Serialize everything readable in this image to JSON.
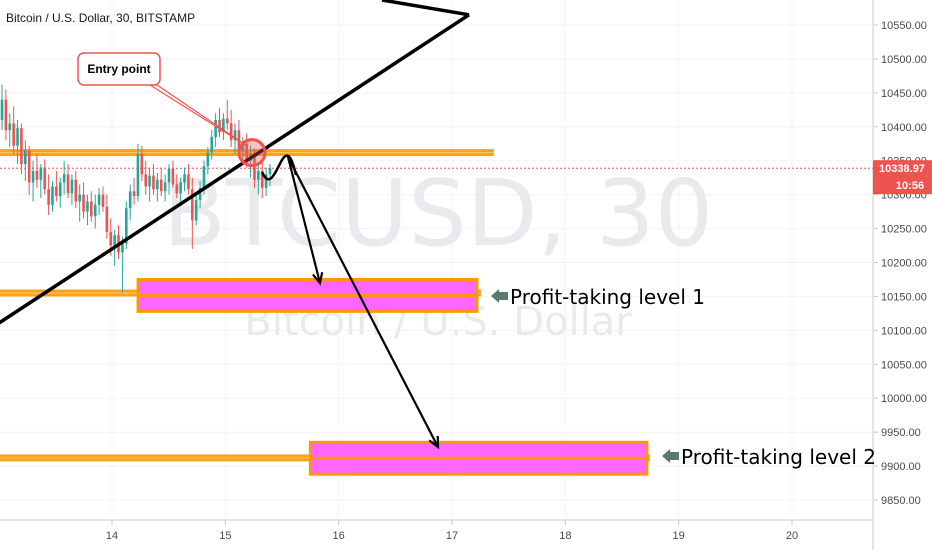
{
  "symbol_title": "Bitcoin / U.S. Dollar, 30, BITSTAMP",
  "watermark": {
    "ticker": "BTCUSD, 30",
    "name": "Bitcoin / U.S. Dollar"
  },
  "price_tag": {
    "price": "10338.97",
    "countdown": "10:56"
  },
  "annotations": {
    "entry_label": "Entry point",
    "tp1_label": "Profit-taking level 1",
    "tp2_label": "Profit-taking level 2"
  },
  "colors": {
    "candle_up": "#26a69a",
    "candle_down": "#ef5350",
    "level_orange": "#ff9800",
    "zone_fill": "#ff66ff",
    "price_tag": "#ef5350",
    "arrow_marker": "#5b7a6e"
  },
  "chart_data": {
    "type": "candlestick",
    "x_ticks": [
      "14",
      "15",
      "16",
      "17",
      "18",
      "19",
      "20"
    ],
    "y_ticks": [
      "10550.00",
      "10500.00",
      "10450.00",
      "10400.00",
      "10350.00",
      "10300.00",
      "10250.00",
      "10200.00",
      "10150.00",
      "10100.00",
      "10050.00",
      "10000.00",
      "9950.00",
      "9900.00",
      "9850.00"
    ],
    "ylim": [
      9820,
      10580
    ],
    "current_price": 10338.97,
    "levels": {
      "entry_resistance": 10362,
      "tp1": 10155,
      "tp2": 9912
    },
    "tp_zones": [
      {
        "x_start": 14.23,
        "x_end": 17.22,
        "y_low": 10128,
        "y_high": 10175
      },
      {
        "x_start": 15.75,
        "x_end": 18.72,
        "y_low": 9888,
        "y_high": 9935
      }
    ],
    "trendline": {
      "x1": 12.95,
      "y1": 10105,
      "x2": 17.15,
      "y2": 10565
    },
    "candles": [
      {
        "o": 10410,
        "h": 10462,
        "l": 10395,
        "c": 10440
      },
      {
        "o": 10440,
        "h": 10455,
        "l": 10380,
        "c": 10395
      },
      {
        "o": 10395,
        "h": 10420,
        "l": 10370,
        "c": 10405
      },
      {
        "o": 10405,
        "h": 10430,
        "l": 10360,
        "c": 10372
      },
      {
        "o": 10372,
        "h": 10410,
        "l": 10345,
        "c": 10398
      },
      {
        "o": 10398,
        "h": 10405,
        "l": 10330,
        "c": 10345
      },
      {
        "o": 10345,
        "h": 10380,
        "l": 10320,
        "c": 10365
      },
      {
        "o": 10365,
        "h": 10372,
        "l": 10300,
        "c": 10318
      },
      {
        "o": 10318,
        "h": 10350,
        "l": 10290,
        "c": 10335
      },
      {
        "o": 10335,
        "h": 10360,
        "l": 10310,
        "c": 10322
      },
      {
        "o": 10322,
        "h": 10345,
        "l": 10295,
        "c": 10340
      },
      {
        "o": 10340,
        "h": 10352,
        "l": 10300,
        "c": 10308
      },
      {
        "o": 10308,
        "h": 10330,
        "l": 10270,
        "c": 10285
      },
      {
        "o": 10285,
        "h": 10320,
        "l": 10275,
        "c": 10312
      },
      {
        "o": 10312,
        "h": 10335,
        "l": 10290,
        "c": 10298
      },
      {
        "o": 10298,
        "h": 10325,
        "l": 10280,
        "c": 10318
      },
      {
        "o": 10318,
        "h": 10350,
        "l": 10300,
        "c": 10330
      },
      {
        "o": 10330,
        "h": 10345,
        "l": 10295,
        "c": 10302
      },
      {
        "o": 10302,
        "h": 10330,
        "l": 10285,
        "c": 10322
      },
      {
        "o": 10322,
        "h": 10335,
        "l": 10280,
        "c": 10290
      },
      {
        "o": 10290,
        "h": 10315,
        "l": 10260,
        "c": 10300
      },
      {
        "o": 10300,
        "h": 10318,
        "l": 10265,
        "c": 10275
      },
      {
        "o": 10275,
        "h": 10300,
        "l": 10255,
        "c": 10290
      },
      {
        "o": 10290,
        "h": 10305,
        "l": 10260,
        "c": 10268
      },
      {
        "o": 10268,
        "h": 10300,
        "l": 10250,
        "c": 10285
      },
      {
        "o": 10285,
        "h": 10310,
        "l": 10270,
        "c": 10300
      },
      {
        "o": 10300,
        "h": 10312,
        "l": 10275,
        "c": 10282
      },
      {
        "o": 10282,
        "h": 10300,
        "l": 10235,
        "c": 10245
      },
      {
        "o": 10245,
        "h": 10265,
        "l": 10210,
        "c": 10225
      },
      {
        "o": 10225,
        "h": 10248,
        "l": 10195,
        "c": 10240
      },
      {
        "o": 10240,
        "h": 10255,
        "l": 10205,
        "c": 10215
      },
      {
        "o": 10215,
        "h": 10238,
        "l": 10155,
        "c": 10228
      },
      {
        "o": 10228,
        "h": 10290,
        "l": 10220,
        "c": 10280
      },
      {
        "o": 10280,
        "h": 10315,
        "l": 10262,
        "c": 10305
      },
      {
        "o": 10305,
        "h": 10325,
        "l": 10285,
        "c": 10298
      },
      {
        "o": 10298,
        "h": 10375,
        "l": 10290,
        "c": 10360
      },
      {
        "o": 10360,
        "h": 10372,
        "l": 10320,
        "c": 10330
      },
      {
        "o": 10330,
        "h": 10350,
        "l": 10300,
        "c": 10312
      },
      {
        "o": 10312,
        "h": 10340,
        "l": 10290,
        "c": 10328
      },
      {
        "o": 10328,
        "h": 10345,
        "l": 10300,
        "c": 10308
      },
      {
        "o": 10308,
        "h": 10332,
        "l": 10290,
        "c": 10322
      },
      {
        "o": 10322,
        "h": 10340,
        "l": 10298,
        "c": 10305
      },
      {
        "o": 10305,
        "h": 10330,
        "l": 10290,
        "c": 10318
      },
      {
        "o": 10318,
        "h": 10345,
        "l": 10300,
        "c": 10338
      },
      {
        "o": 10338,
        "h": 10350,
        "l": 10310,
        "c": 10315
      },
      {
        "o": 10315,
        "h": 10330,
        "l": 10295,
        "c": 10302
      },
      {
        "o": 10302,
        "h": 10325,
        "l": 10290,
        "c": 10318
      },
      {
        "o": 10318,
        "h": 10340,
        "l": 10305,
        "c": 10330
      },
      {
        "o": 10330,
        "h": 10345,
        "l": 10300,
        "c": 10308
      },
      {
        "o": 10308,
        "h": 10325,
        "l": 10220,
        "c": 10262
      },
      {
        "o": 10262,
        "h": 10300,
        "l": 10255,
        "c": 10292
      },
      {
        "o": 10292,
        "h": 10320,
        "l": 10280,
        "c": 10310
      },
      {
        "o": 10310,
        "h": 10350,
        "l": 10300,
        "c": 10342
      },
      {
        "o": 10342,
        "h": 10370,
        "l": 10330,
        "c": 10362
      },
      {
        "o": 10362,
        "h": 10395,
        "l": 10352,
        "c": 10385
      },
      {
        "o": 10385,
        "h": 10420,
        "l": 10370,
        "c": 10410
      },
      {
        "o": 10410,
        "h": 10428,
        "l": 10385,
        "c": 10392
      },
      {
        "o": 10392,
        "h": 10420,
        "l": 10380,
        "c": 10412
      },
      {
        "o": 10412,
        "h": 10440,
        "l": 10395,
        "c": 10405
      },
      {
        "o": 10405,
        "h": 10425,
        "l": 10370,
        "c": 10380
      },
      {
        "o": 10380,
        "h": 10405,
        "l": 10360,
        "c": 10395
      },
      {
        "o": 10395,
        "h": 10410,
        "l": 10355,
        "c": 10365
      },
      {
        "o": 10365,
        "h": 10385,
        "l": 10345,
        "c": 10375
      },
      {
        "o": 10375,
        "h": 10390,
        "l": 10340,
        "c": 10350
      },
      {
        "o": 10350,
        "h": 10372,
        "l": 10325,
        "c": 10360
      },
      {
        "o": 10360,
        "h": 10368,
        "l": 10310,
        "c": 10322
      },
      {
        "o": 10322,
        "h": 10348,
        "l": 10300,
        "c": 10335
      },
      {
        "o": 10335,
        "h": 10352,
        "l": 10295,
        "c": 10310
      },
      {
        "o": 10310,
        "h": 10340,
        "l": 10298,
        "c": 10330
      },
      {
        "o": 10330,
        "h": 10345,
        "l": 10312,
        "c": 10339
      }
    ]
  }
}
